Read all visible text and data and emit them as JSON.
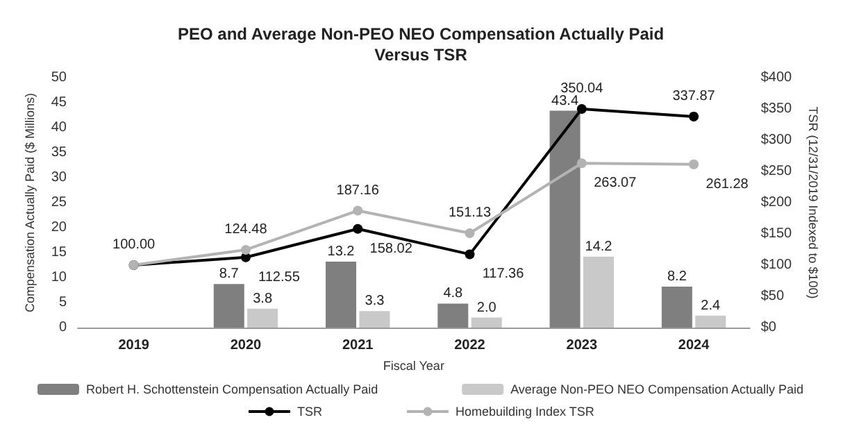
{
  "chart_data": {
    "type": "bar",
    "title": "PEO and Average Non-PEO NEO Compensation Actually Paid\nVersus TSR",
    "xlabel": "Fiscal Year",
    "ylabel": "Compensation Actually Paid ($ Millions)",
    "y2label": "TSR (12/31/2019 Indexed to $100)",
    "categories": [
      "2019",
      "2020",
      "2021",
      "2022",
      "2023",
      "2024"
    ],
    "series": [
      {
        "name": "Robert H. Schottenstein Compensation Actually Paid",
        "color": "#7f7f7f",
        "values": [
          null,
          8.7,
          13.2,
          4.8,
          43.4,
          8.2
        ],
        "value_labels": [
          null,
          "8.7",
          "13.2",
          "4.8",
          "43.4",
          "8.2"
        ]
      },
      {
        "name": "Average Non-PEO NEO Compensation Actually Paid",
        "color": "#c9c9c9",
        "values": [
          null,
          3.8,
          3.3,
          2.0,
          14.2,
          2.4
        ],
        "value_labels": [
          null,
          "3.8",
          "3.3",
          "2.0",
          "14.2",
          "2.4"
        ]
      },
      {
        "name": "TSR",
        "type": "line",
        "axis": "y2",
        "color": "#000000",
        "values": [
          100,
          112.55,
          158.02,
          117.36,
          350.04,
          337.87
        ],
        "value_labels": [
          "100.00",
          "112.55",
          "158.02",
          "117.36",
          "350.04",
          "337.87"
        ]
      },
      {
        "name": "Homebuilding Index TSR",
        "type": "line",
        "axis": "y2",
        "color": "#b3b3b3",
        "values": [
          100,
          124.48,
          187.16,
          151.13,
          263.07,
          261.28
        ],
        "value_labels": [
          null,
          "124.48",
          "187.16",
          "151.13",
          "263.07",
          "261.28"
        ]
      }
    ],
    "ylim": [
      0,
      50
    ],
    "yticks": [
      0,
      5,
      10,
      15,
      20,
      25,
      30,
      35,
      40,
      45,
      50
    ],
    "y2lim": [
      0,
      400
    ],
    "y2ticks": [
      {
        "value": 0,
        "label": "$0"
      },
      {
        "value": 50,
        "label": "$50"
      },
      {
        "value": 100,
        "label": "$100"
      },
      {
        "value": 150,
        "label": "$150"
      },
      {
        "value": 200,
        "label": "$200"
      },
      {
        "value": 250,
        "label": "$250"
      },
      {
        "value": 300,
        "label": "$300"
      },
      {
        "value": 350,
        "label": "$350"
      },
      {
        "value": 400,
        "label": "$400"
      }
    ],
    "marker": "circle",
    "legend": "bottom",
    "grid": false
  }
}
